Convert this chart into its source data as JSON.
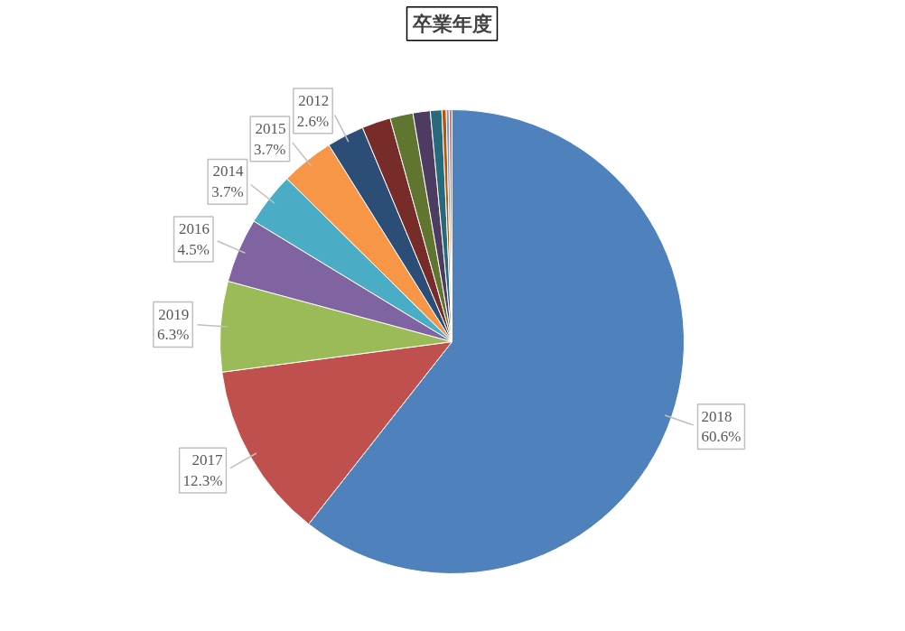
{
  "chart_data": {
    "type": "pie",
    "title": "卒業年度",
    "categories": [
      "2018",
      "2017",
      "2019",
      "2016",
      "2014",
      "2015",
      "2012",
      null,
      null,
      null,
      null,
      null,
      null,
      null
    ],
    "values": [
      60.6,
      12.3,
      6.3,
      4.5,
      3.7,
      3.7,
      2.6,
      2.0,
      1.6,
      1.2,
      0.8,
      0.3,
      0.2,
      0.2
    ],
    "value_labels": [
      "60.6%",
      "12.3%",
      "6.3%",
      "4.5%",
      "3.7%",
      "3.7%",
      "2.6%",
      null,
      null,
      null,
      null,
      null,
      null,
      null
    ],
    "colors": [
      "#4f81bd",
      "#c0504d",
      "#9bbb59",
      "#8064a2",
      "#4bacc6",
      "#f79646",
      "#2c4d75",
      "#772c2a",
      "#5f7530",
      "#4d3b62",
      "#276a7c",
      "#b65708",
      "#729aca",
      "#d07c7a"
    ],
    "legend": false
  }
}
